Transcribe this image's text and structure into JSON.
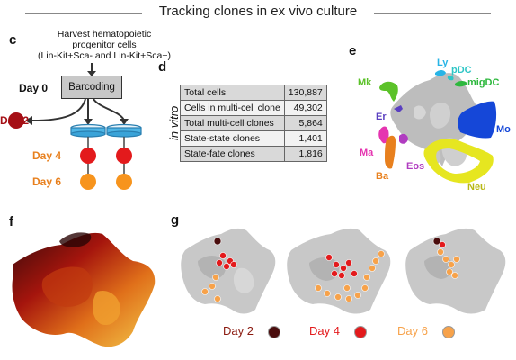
{
  "title": "Tracking clones in ex vivo culture",
  "panels": {
    "c": "c",
    "d": "d",
    "e": "e",
    "f": "f",
    "g": "g"
  },
  "panel_c": {
    "harvest": [
      "Harvest hematopoietic",
      "progenitor cells",
      "(Lin-Kit+Sca- and Lin-Kit+Sca+)"
    ],
    "day0": "Day 0",
    "barcoding": "Barcoding",
    "day2": "Day 2",
    "day4": "Day 4",
    "day6": "Day 6",
    "colors": {
      "day2": "#a50f15",
      "day4": "#e31a1c",
      "day6": "#f7941d"
    }
  },
  "panel_d": {
    "side_label": "in vitro",
    "rows": [
      {
        "label": "Total cells",
        "value": "130,887"
      },
      {
        "label": "Cells in multi-cell clone",
        "value": "49,302"
      },
      {
        "label": "Total multi-cell clones",
        "value": "5,864"
      },
      {
        "label": "State-state clones",
        "value": "1,401"
      },
      {
        "label": "State-fate clones",
        "value": "1,816"
      }
    ]
  },
  "panel_e": {
    "labels": {
      "ly": "Ly",
      "pdc": "pDC",
      "migdc": "migDC",
      "mk": "Mk",
      "er": "Er",
      "mo": "Mo",
      "ma": "Ma",
      "eos": "Eos",
      "ba": "Ba",
      "neu": "Neu"
    },
    "colors": {
      "ly": "#28b4e6",
      "pdc": "#2ec6c6",
      "migdc": "#2db83d",
      "mk": "#5cc22a",
      "er": "#5a3fc0",
      "mo": "#1547d8",
      "ma": "#e535b0",
      "eos": "#b03cc0",
      "ba": "#e8801e",
      "neu": "#e6e620"
    }
  },
  "panel_g": {
    "legend": [
      {
        "label": "Day 2",
        "color": "#4a0d0d"
      },
      {
        "label": "Day 4",
        "color": "#e31a1c"
      },
      {
        "label": "Day 6",
        "color": "#f7a24a"
      }
    ]
  }
}
